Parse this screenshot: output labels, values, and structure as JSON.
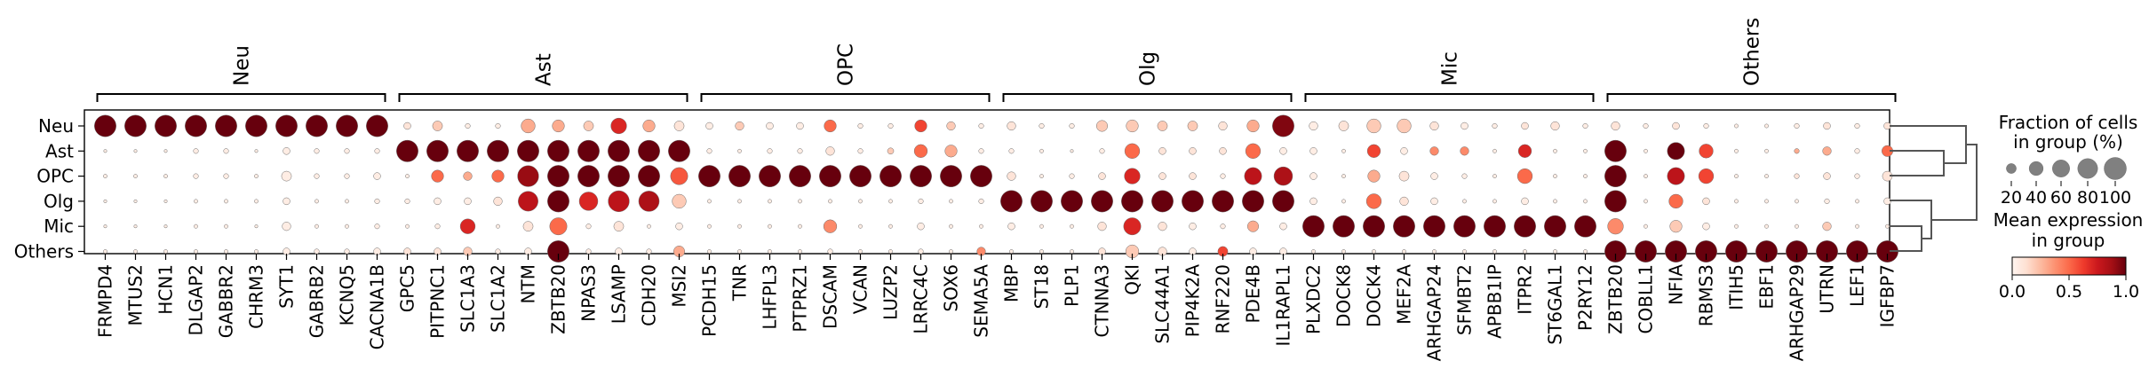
{
  "chart_data": {
    "type": "dotplot",
    "rows": [
      "Neu",
      "Ast",
      "OPC",
      "Olg",
      "Mic",
      "Others"
    ],
    "groups": [
      {
        "name": "Neu",
        "genes": [
          "FRMPD4",
          "MTUS2",
          "HCN1",
          "DLGAP2",
          "GABBR2",
          "CHRM3",
          "SYT1",
          "GABRB2",
          "KCNQ5",
          "CACNA1B"
        ]
      },
      {
        "name": "Ast",
        "genes": [
          "GPC5",
          "PITPNC1",
          "SLC1A3",
          "SLC1A2",
          "NTM",
          "ZBTB20",
          "NPAS3",
          "LSAMP",
          "CDH20",
          "MSI2"
        ]
      },
      {
        "name": "OPC",
        "genes": [
          "PCDH15",
          "TNR",
          "LHFPL3",
          "PTPRZ1",
          "DSCAM",
          "VCAN",
          "LUZP2",
          "LRRC4C",
          "SOX6",
          "SEMA5A"
        ]
      },
      {
        "name": "Olg",
        "genes": [
          "MBP",
          "ST18",
          "PLP1",
          "CTNNA3",
          "QKI",
          "SLC44A1",
          "PIP4K2A",
          "RNF220",
          "PDE4B",
          "IL1RAPL1"
        ]
      },
      {
        "name": "Mic",
        "genes": [
          "PLXDC2",
          "DOCK8",
          "DOCK4",
          "MEF2A",
          "ARHGAP24",
          "SFMBT2",
          "APBB1IP",
          "ITPR2",
          "ST6GAL1",
          "P2RY12"
        ]
      },
      {
        "name": "Others",
        "genes": [
          "ZBTB20",
          "COBLL1",
          "NFIA",
          "RBMS3",
          "ITIH5",
          "EBF1",
          "ARHGAP29",
          "UTRN",
          "LEF1",
          "IGFBP7"
        ]
      }
    ],
    "fraction": [
      [
        95,
        95,
        95,
        95,
        95,
        95,
        95,
        95,
        95,
        95,
        10,
        20,
        5,
        5,
        40,
        30,
        20,
        50,
        30,
        20,
        10,
        15,
        10,
        10,
        30,
        5,
        5,
        30,
        15,
        5,
        15,
        5,
        5,
        25,
        30,
        20,
        20,
        15,
        30,
        95,
        15,
        20,
        40,
        40,
        15,
        10,
        5,
        10,
        15,
        5,
        15,
        5,
        10,
        5,
        3,
        3,
        5,
        10,
        5,
        10
      ],
      [
        2,
        2,
        2,
        5,
        5,
        2,
        10,
        5,
        5,
        5,
        95,
        95,
        95,
        95,
        95,
        95,
        95,
        95,
        95,
        95,
        5,
        3,
        5,
        5,
        15,
        5,
        8,
        35,
        30,
        5,
        5,
        3,
        2,
        5,
        45,
        10,
        10,
        10,
        45,
        10,
        10,
        3,
        35,
        10,
        15,
        15,
        3,
        35,
        3,
        3,
        95,
        3,
        60,
        40,
        3,
        3,
        5,
        15,
        5,
        25
      ],
      [
        3,
        3,
        3,
        5,
        5,
        3,
        20,
        5,
        5,
        10,
        3,
        30,
        15,
        30,
        90,
        95,
        95,
        95,
        95,
        60,
        95,
        95,
        95,
        95,
        95,
        95,
        95,
        95,
        95,
        95,
        15,
        3,
        5,
        10,
        50,
        10,
        10,
        5,
        60,
        70,
        10,
        3,
        30,
        20,
        10,
        5,
        3,
        45,
        3,
        3,
        95,
        3,
        60,
        45,
        3,
        3,
        5,
        10,
        5,
        20
      ],
      [
        2,
        2,
        2,
        3,
        3,
        3,
        10,
        3,
        3,
        5,
        5,
        10,
        10,
        15,
        80,
        95,
        70,
        90,
        85,
        40,
        3,
        3,
        3,
        3,
        3,
        3,
        3,
        5,
        3,
        5,
        95,
        95,
        95,
        95,
        95,
        95,
        95,
        95,
        95,
        95,
        10,
        3,
        45,
        15,
        10,
        3,
        3,
        10,
        3,
        3,
        95,
        3,
        40,
        10,
        3,
        3,
        3,
        5,
        3,
        10
      ],
      [
        2,
        2,
        2,
        3,
        3,
        2,
        15,
        3,
        3,
        5,
        3,
        5,
        45,
        3,
        20,
        60,
        5,
        20,
        3,
        10,
        3,
        3,
        3,
        3,
        35,
        3,
        3,
        10,
        3,
        3,
        10,
        3,
        3,
        15,
        60,
        15,
        10,
        5,
        25,
        10,
        95,
        95,
        95,
        95,
        95,
        95,
        95,
        95,
        95,
        95,
        50,
        3,
        30,
        10,
        3,
        3,
        3,
        15,
        3,
        3
      ],
      [
        3,
        3,
        3,
        3,
        3,
        3,
        10,
        5,
        5,
        10,
        10,
        10,
        15,
        5,
        10,
        95,
        5,
        10,
        5,
        25,
        3,
        3,
        3,
        3,
        5,
        3,
        3,
        5,
        3,
        15,
        3,
        3,
        3,
        10,
        35,
        15,
        10,
        20,
        10,
        10,
        3,
        3,
        3,
        3,
        3,
        3,
        3,
        3,
        3,
        3,
        95,
        95,
        95,
        95,
        95,
        95,
        95,
        95,
        95,
        95
      ]
    ],
    "expression": [
      [
        1.0,
        1.0,
        1.0,
        1.0,
        1.0,
        1.0,
        1.0,
        1.0,
        1.0,
        1.0,
        0.1,
        0.2,
        0.05,
        0.05,
        0.3,
        0.3,
        0.2,
        0.7,
        0.3,
        0.1,
        0.05,
        0.2,
        0.05,
        0.05,
        0.5,
        0.05,
        0.05,
        0.6,
        0.2,
        0.05,
        0.1,
        0.05,
        0.05,
        0.2,
        0.2,
        0.2,
        0.2,
        0.1,
        0.3,
        0.95,
        0.05,
        0.1,
        0.2,
        0.2,
        0.1,
        0.05,
        0.05,
        0.1,
        0.1,
        0.05,
        0.1,
        0.05,
        0.1,
        0.05,
        0.05,
        0.05,
        0.05,
        0.1,
        0.05,
        0.1
      ],
      [
        0.05,
        0.05,
        0.05,
        0.05,
        0.05,
        0.05,
        0.05,
        0.05,
        0.05,
        0.05,
        1.0,
        1.0,
        1.0,
        1.0,
        1.0,
        1.0,
        1.0,
        1.0,
        1.0,
        1.0,
        0.05,
        0.05,
        0.05,
        0.05,
        0.1,
        0.05,
        0.2,
        0.5,
        0.3,
        0.05,
        0.05,
        0.05,
        0.05,
        0.05,
        0.5,
        0.1,
        0.1,
        0.1,
        0.5,
        0.05,
        0.05,
        0.05,
        0.6,
        0.05,
        0.4,
        0.4,
        0.05,
        0.7,
        0.05,
        0.05,
        1.0,
        0.05,
        1.0,
        0.6,
        0.05,
        0.05,
        0.3,
        0.3,
        0.05,
        0.5
      ],
      [
        0.05,
        0.05,
        0.05,
        0.05,
        0.05,
        0.05,
        0.05,
        0.05,
        0.05,
        0.05,
        0.05,
        0.5,
        0.3,
        0.5,
        0.9,
        1.0,
        1.0,
        1.0,
        1.0,
        0.55,
        1.0,
        1.0,
        1.0,
        1.0,
        1.0,
        1.0,
        1.0,
        1.0,
        1.0,
        1.0,
        0.1,
        0.05,
        0.05,
        0.1,
        0.7,
        0.1,
        0.1,
        0.05,
        0.8,
        0.85,
        0.05,
        0.05,
        0.3,
        0.1,
        0.05,
        0.05,
        0.05,
        0.5,
        0.05,
        0.05,
        1.0,
        0.05,
        0.8,
        0.6,
        0.05,
        0.05,
        0.1,
        0.1,
        0.05,
        0.1
      ],
      [
        0.05,
        0.05,
        0.05,
        0.05,
        0.05,
        0.05,
        0.05,
        0.05,
        0.05,
        0.05,
        0.05,
        0.05,
        0.05,
        0.1,
        0.8,
        1.0,
        0.7,
        0.8,
        0.85,
        0.2,
        0.05,
        0.05,
        0.05,
        0.05,
        0.05,
        0.05,
        0.05,
        0.05,
        0.05,
        0.05,
        1.0,
        1.0,
        1.0,
        1.0,
        1.0,
        1.0,
        1.0,
        1.0,
        1.0,
        1.0,
        0.05,
        0.05,
        0.5,
        0.1,
        0.05,
        0.05,
        0.05,
        0.05,
        0.05,
        0.05,
        1.0,
        0.05,
        0.5,
        0.1,
        0.05,
        0.05,
        0.05,
        0.05,
        0.05,
        0.05
      ],
      [
        0.05,
        0.05,
        0.05,
        0.05,
        0.05,
        0.05,
        0.05,
        0.05,
        0.05,
        0.05,
        0.05,
        0.05,
        0.7,
        0.05,
        0.1,
        0.5,
        0.05,
        0.1,
        0.05,
        0.05,
        0.05,
        0.05,
        0.05,
        0.05,
        0.4,
        0.05,
        0.05,
        0.05,
        0.05,
        0.05,
        0.05,
        0.05,
        0.05,
        0.1,
        0.7,
        0.1,
        0.05,
        0.05,
        0.3,
        0.05,
        1.0,
        1.0,
        1.0,
        1.0,
        1.0,
        1.0,
        1.0,
        1.0,
        1.0,
        1.0,
        0.4,
        0.05,
        0.2,
        0.05,
        0.05,
        0.05,
        0.05,
        0.2,
        0.05,
        0.05
      ],
      [
        0.05,
        0.05,
        0.05,
        0.05,
        0.05,
        0.05,
        0.05,
        0.05,
        0.05,
        0.05,
        0.1,
        0.1,
        0.2,
        0.05,
        0.05,
        1.0,
        0.05,
        0.05,
        0.05,
        0.3,
        0.05,
        0.05,
        0.05,
        0.05,
        0.05,
        0.05,
        0.05,
        0.05,
        0.05,
        0.4,
        0.05,
        0.05,
        0.05,
        0.1,
        0.2,
        0.1,
        0.05,
        0.6,
        0.05,
        0.05,
        0.05,
        0.05,
        0.05,
        0.05,
        0.05,
        0.05,
        0.05,
        0.05,
        0.05,
        0.05,
        1.0,
        1.0,
        1.0,
        1.0,
        1.0,
        1.0,
        1.0,
        1.0,
        1.0,
        1.0
      ]
    ],
    "size_legend": {
      "title_line1": "Fraction of cells",
      "title_line2": "in group (%)",
      "ticks": [
        "20",
        "40",
        "60",
        "80",
        "100"
      ],
      "values": [
        20,
        40,
        60,
        80,
        100
      ]
    },
    "color_legend": {
      "title_line1": "Mean expression",
      "title_line2": "in group",
      "ticks": [
        "0.0",
        "0.5",
        "1.0"
      ],
      "range": [
        0,
        1
      ],
      "colormap": "Reds"
    },
    "dendrogram": "right",
    "grid": false
  }
}
